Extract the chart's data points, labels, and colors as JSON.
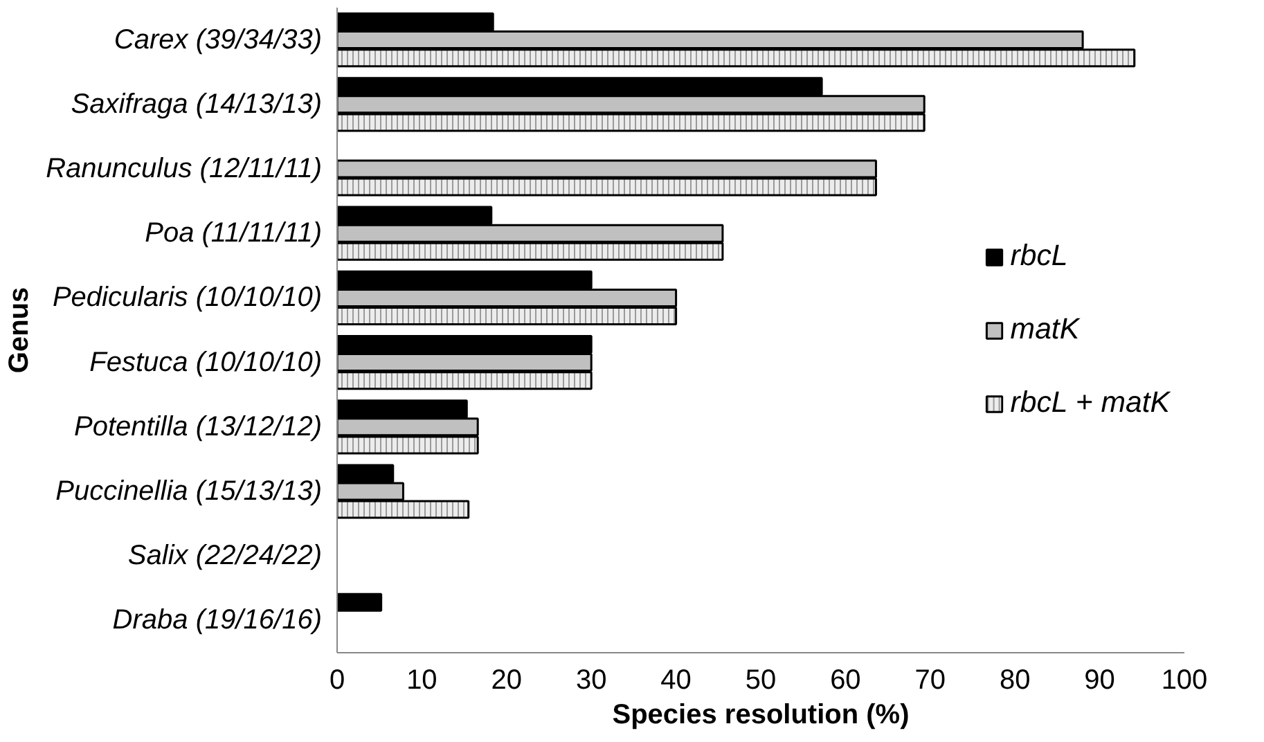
{
  "chart_data": {
    "type": "bar",
    "orientation": "horizontal",
    "xlabel": "Species resolution (%)",
    "ylabel": "Genus",
    "categories": [
      "Carex (39/34/33)",
      "Saxifraga (14/13/13)",
      "Ranunculus (12/11/11)",
      "Poa (11/11/11)",
      "Pedicularis (10/10/10)",
      "Festuca (10/10/10)",
      "Potentilla (13/12/12)",
      "Puccinellia (15/13/13)",
      "Salix (22/24/22)",
      "Draba (19/16/16)"
    ],
    "series": [
      {
        "name": "rbcL",
        "color": "#000000",
        "values": [
          18.4,
          57.2,
          0,
          18.2,
          30,
          30,
          15.3,
          6.6,
          0,
          5.2
        ]
      },
      {
        "name": "matK",
        "color": "#c0c0c0",
        "values": [
          88,
          69.3,
          63.6,
          45.5,
          40,
          30,
          16.6,
          7.8,
          0,
          0
        ]
      },
      {
        "name": "rbcL + matK",
        "color": "#ececec",
        "values": [
          94.1,
          69.3,
          63.6,
          45.5,
          40,
          30,
          16.6,
          15.5,
          0,
          0
        ]
      }
    ],
    "xlim": [
      0,
      100
    ],
    "xticks": [
      0,
      10,
      20,
      30,
      40,
      50,
      60,
      70,
      80,
      90,
      100
    ],
    "grid": false,
    "legend": "right"
  }
}
